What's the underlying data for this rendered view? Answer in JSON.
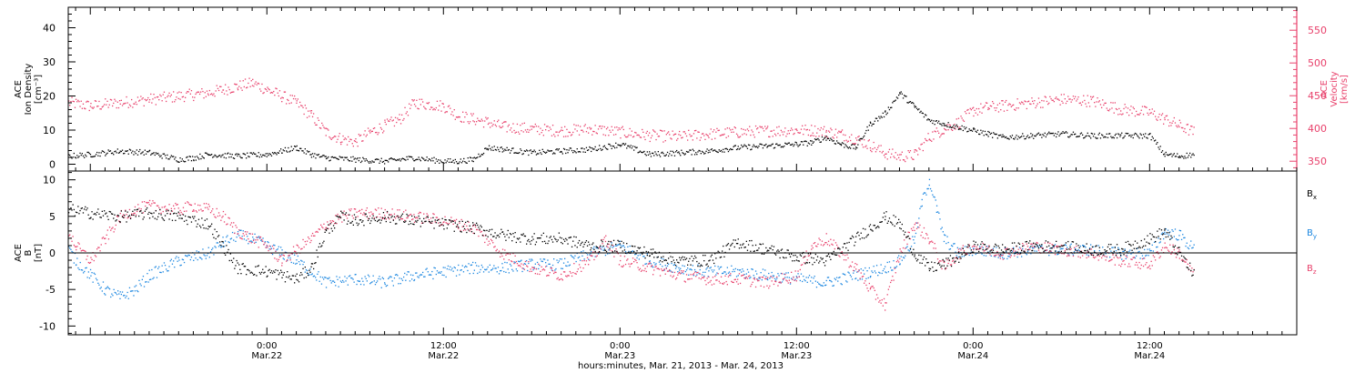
{
  "figure": {
    "xlabel": "hours:minutes, Mar. 21, 2013 - Mar. 24, 2013",
    "time_ticks": [
      {
        "hours": 30,
        "time": "0:00",
        "date": "Mar.22"
      },
      {
        "hours": 42,
        "time": "12:00",
        "date": "Mar.22"
      },
      {
        "hours": 54,
        "time": "0:00",
        "date": "Mar.23"
      },
      {
        "hours": 66,
        "time": "12:00",
        "date": "Mar.23"
      },
      {
        "hours": 78,
        "time": "0:00",
        "date": "Mar.24"
      },
      {
        "hours": 90,
        "time": "12:00",
        "date": "Mar.24"
      }
    ]
  },
  "colors": {
    "black_series": "#000000",
    "density": "#000000",
    "velocity": "#e8406b",
    "bx": "#000000",
    "by": "#1a86e0",
    "bz": "#e8406b",
    "axis": "#000000"
  },
  "chart_data": [
    {
      "type": "scatter",
      "panel": "top",
      "xlim": [
        16.5,
        100
      ],
      "left_axis": {
        "label_lines": [
          "ACE",
          "Ion Density",
          "[cm⁻³]"
        ],
        "ylim": [
          -2,
          46
        ],
        "ticks": [
          0,
          10,
          20,
          30,
          40
        ]
      },
      "right_axis": {
        "label_lines": [
          "ACE",
          "Velocity",
          "[km/s]"
        ],
        "ylim": [
          335,
          585
        ],
        "ticks": [
          350,
          400,
          450,
          500,
          550
        ]
      },
      "series": [
        {
          "key": "density",
          "axis": "left",
          "x": [
            16.5,
            18,
            20,
            22,
            24,
            25,
            26,
            28,
            30,
            31,
            32,
            33,
            34,
            36,
            38,
            40,
            42,
            43,
            44,
            45,
            46,
            48,
            50,
            52,
            54,
            56,
            58,
            60,
            62,
            64,
            66,
            67,
            68,
            69,
            70,
            71,
            72,
            73,
            74,
            75,
            76,
            77,
            78,
            79,
            80,
            82,
            84,
            86,
            88,
            90,
            91,
            92,
            93
          ],
          "values": [
            2.5,
            3,
            4,
            3.5,
            1.5,
            2,
            3,
            2.5,
            3,
            4,
            5,
            3,
            2,
            1.5,
            1,
            2,
            1,
            1,
            1.5,
            5,
            4.5,
            3.5,
            4,
            4.5,
            6,
            3,
            3.5,
            4,
            5,
            5.5,
            6,
            6.5,
            8,
            6,
            5,
            12,
            15,
            21,
            17,
            13,
            12,
            11,
            10,
            9,
            8,
            8.5,
            9,
            8.5,
            8.5,
            8.5,
            3,
            2.5,
            3
          ]
        },
        {
          "key": "velocity",
          "axis": "right",
          "x": [
            16.5,
            18,
            20,
            22,
            24,
            26,
            27,
            28,
            29,
            30,
            31,
            32,
            33,
            34,
            35,
            36,
            37,
            38,
            39,
            40,
            42,
            43,
            44,
            45,
            46,
            48,
            50,
            52,
            54,
            56,
            58,
            60,
            62,
            64,
            66,
            67,
            68,
            69,
            70,
            71,
            72,
            73,
            74,
            75,
            76,
            77,
            78,
            79,
            80,
            82,
            84,
            86,
            88,
            90,
            91,
            92,
            93
          ],
          "values": [
            440,
            435,
            440,
            445,
            450,
            455,
            460,
            465,
            470,
            460,
            450,
            440,
            420,
            395,
            385,
            380,
            395,
            405,
            415,
            440,
            435,
            420,
            415,
            410,
            403,
            400,
            397,
            400,
            395,
            390,
            388,
            392,
            395,
            397,
            398,
            398,
            396,
            392,
            385,
            375,
            363,
            358,
            360,
            388,
            400,
            410,
            428,
            433,
            435,
            440,
            445,
            443,
            430,
            425,
            415,
            405,
            395
          ]
        }
      ]
    },
    {
      "type": "scatter",
      "panel": "bottom",
      "xlim": [
        16.5,
        100
      ],
      "ylabel_lines": [
        "ACE",
        "B",
        "[nT]"
      ],
      "ylim": [
        -11.2,
        11.2
      ],
      "ticks": [
        -10,
        -5,
        0,
        5,
        10
      ],
      "zero_line": true,
      "legend": {
        "placement": "right",
        "entries": [
          {
            "key": "bx",
            "name": "Bx"
          },
          {
            "key": "by",
            "name": "By"
          },
          {
            "key": "bz",
            "name": "Bz"
          }
        ]
      },
      "series": [
        {
          "key": "bx",
          "x": [
            16.5,
            18,
            20,
            22,
            24,
            26,
            27,
            28,
            30,
            31,
            32,
            33,
            34,
            35,
            36,
            38,
            40,
            42,
            44,
            46,
            48,
            50,
            52,
            54,
            56,
            58,
            60,
            62,
            64,
            66,
            68,
            70,
            71,
            72,
            73,
            74,
            75,
            76,
            77,
            78,
            80,
            82,
            84,
            86,
            88,
            90,
            91,
            92,
            93
          ],
          "values": [
            6,
            5.5,
            5,
            5.5,
            5,
            4,
            1,
            -2,
            -2.5,
            -3,
            -3.5,
            -2,
            3,
            5,
            4.5,
            5,
            4.5,
            4,
            3.5,
            2.5,
            2,
            2,
            1,
            1,
            0,
            -1,
            -1,
            1.5,
            0.5,
            -0.5,
            -1,
            2,
            3.5,
            5,
            4,
            0,
            -2,
            -1.5,
            -0.5,
            1,
            0.5,
            1,
            1,
            0.5,
            0.5,
            2,
            3,
            0,
            -3
          ]
        },
        {
          "key": "by",
          "x": [
            16.5,
            17,
            18,
            19,
            20,
            21,
            22,
            24,
            26,
            27,
            28,
            29,
            30,
            31,
            32,
            34,
            36,
            38,
            40,
            42,
            44,
            46,
            48,
            50,
            52,
            54,
            56,
            58,
            60,
            62,
            64,
            66,
            68,
            70,
            71,
            72,
            73,
            74,
            74.5,
            75,
            75.5,
            76,
            77,
            78,
            80,
            82,
            84,
            86,
            88,
            90,
            91,
            92,
            93
          ],
          "values": [
            0.5,
            -1,
            -3,
            -5,
            -6,
            -5,
            -3,
            -1,
            0,
            1.5,
            2.5,
            2,
            1,
            0,
            -1,
            -4,
            -3.5,
            -4,
            -3,
            -2.5,
            -2,
            -2,
            -1.5,
            -1.5,
            0,
            1,
            -1,
            -2,
            -2.5,
            -2.5,
            -3,
            -3.5,
            -4,
            -3,
            -2.5,
            -2,
            -1,
            2,
            7,
            10,
            6,
            2,
            0,
            0.5,
            0,
            0.5,
            0.5,
            0.5,
            0,
            0,
            3,
            2.5,
            0.5
          ]
        },
        {
          "key": "bz",
          "x": [
            16.5,
            17,
            18,
            19,
            20,
            21,
            22,
            24,
            25,
            26,
            27,
            28,
            30,
            31,
            32,
            33,
            34,
            35,
            36,
            38,
            40,
            42,
            44,
            46,
            48,
            50,
            52,
            53,
            54,
            56,
            58,
            60,
            62,
            64,
            66,
            67,
            68,
            70,
            71,
            72,
            73,
            74,
            75,
            76,
            77,
            78,
            80,
            82,
            84,
            86,
            88,
            90,
            91,
            92,
            93
          ],
          "values": [
            3,
            1,
            -1,
            2,
            5,
            6,
            6.5,
            6,
            6.5,
            6,
            5,
            3,
            1,
            -1,
            0.5,
            2,
            4,
            5,
            5.5,
            5.5,
            5,
            4.5,
            3.5,
            0,
            -2,
            -3,
            -1,
            2,
            -1,
            -2,
            -3,
            -3.5,
            -3.5,
            -4,
            -3,
            1,
            2,
            -2,
            -5,
            -7,
            0,
            4,
            2,
            -2,
            0,
            1,
            0,
            1,
            0.5,
            0,
            -1,
            -1.5,
            1,
            0,
            -3
          ]
        }
      ]
    }
  ]
}
